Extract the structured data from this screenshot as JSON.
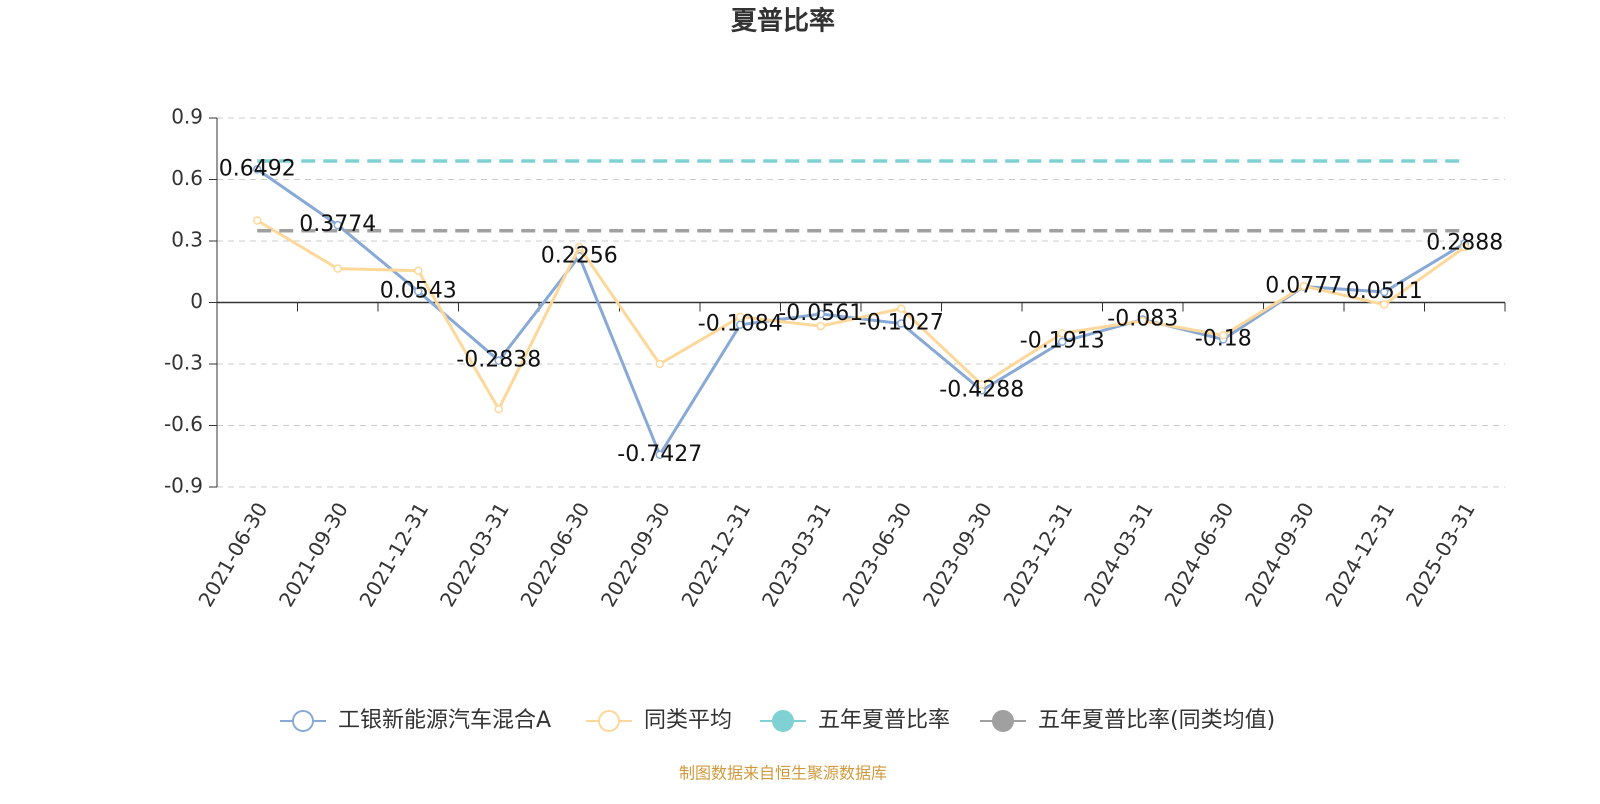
{
  "chart_data": {
    "type": "line",
    "title": "夏普比率",
    "categories": [
      "2021-06-30",
      "2021-09-30",
      "2021-12-31",
      "2022-03-31",
      "2022-06-30",
      "2022-09-30",
      "2022-12-31",
      "2023-03-31",
      "2023-06-30",
      "2023-09-30",
      "2023-12-31",
      "2024-03-31",
      "2024-06-30",
      "2024-09-30",
      "2024-12-31",
      "2025-03-31"
    ],
    "series": [
      {
        "name": "工银新能源汽车混合A",
        "color": "#88a9d6",
        "values": [
          0.6492,
          0.3774,
          0.0543,
          -0.2838,
          0.2256,
          -0.7427,
          -0.1084,
          -0.0561,
          -0.1027,
          -0.4288,
          -0.1913,
          -0.083,
          -0.18,
          0.0777,
          0.0511,
          0.2888
        ],
        "data_labels": true
      },
      {
        "name": "同类平均",
        "color": "#fdd89a",
        "values": [
          0.4,
          0.165,
          0.155,
          -0.52,
          0.27,
          -0.3,
          -0.07,
          -0.115,
          -0.03,
          -0.4,
          -0.15,
          -0.09,
          -0.16,
          0.08,
          -0.01,
          0.27
        ]
      },
      {
        "name": "五年夏普比率",
        "color": "#7fd1d3",
        "value": 0.69
      },
      {
        "name": "五年夏普比率(同类均值)",
        "color": "#a0a0a0",
        "value": 0.35
      }
    ],
    "ylim": [
      -0.9,
      0.9
    ],
    "yticks": [
      -0.9,
      -0.6,
      -0.3,
      0,
      0.3,
      0.6,
      0.9
    ],
    "grid": true,
    "source": "制图数据来自恒生聚源数据库"
  }
}
